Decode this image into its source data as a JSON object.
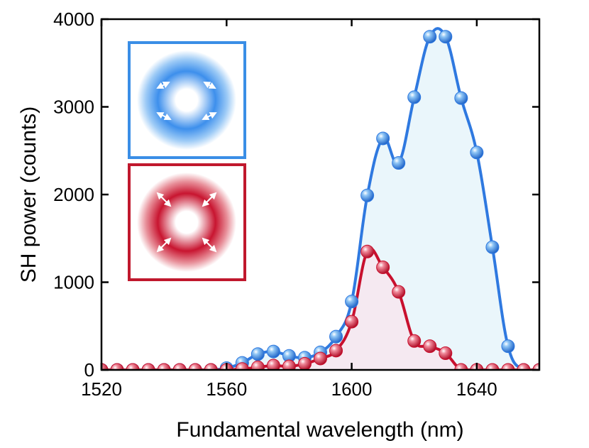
{
  "chart_data": {
    "type": "scatter",
    "title": "",
    "xlabel": "Fundamental wavelength (nm)",
    "ylabel": "SH power (counts)",
    "xlim": [
      1520,
      1660
    ],
    "ylim": [
      0,
      4000
    ],
    "xticks": [
      1520,
      1560,
      1600,
      1640
    ],
    "yticks": [
      0,
      1000,
      2000,
      3000,
      4000
    ],
    "legend": "inset icons top-left (blue and red ring patterns with arrows)",
    "series": [
      {
        "name": "blue",
        "color": "#2f79e0",
        "fill": "#eaf6fb",
        "x": [
          1520,
          1525,
          1530,
          1535,
          1540,
          1545,
          1550,
          1555,
          1560,
          1565,
          1570,
          1575,
          1580,
          1585,
          1590,
          1595,
          1600,
          1605,
          1610,
          1615,
          1620,
          1625,
          1630,
          1635,
          1640,
          1645,
          1650,
          1655,
          1660
        ],
        "y": [
          0,
          0,
          0,
          0,
          0,
          0,
          0,
          0,
          20,
          80,
          180,
          210,
          160,
          140,
          200,
          380,
          780,
          1990,
          2640,
          2360,
          3110,
          3800,
          3800,
          3100,
          2480,
          1400,
          270,
          0,
          0
        ]
      },
      {
        "name": "red",
        "color": "#c8102e",
        "fill": "#f5e9f1",
        "x": [
          1520,
          1525,
          1530,
          1535,
          1540,
          1545,
          1550,
          1555,
          1560,
          1565,
          1570,
          1575,
          1580,
          1585,
          1590,
          1595,
          1600,
          1605,
          1610,
          1615,
          1620,
          1625,
          1630,
          1635,
          1640,
          1645,
          1650,
          1655,
          1660
        ],
        "y": [
          0,
          0,
          0,
          0,
          0,
          0,
          0,
          0,
          0,
          10,
          30,
          50,
          40,
          70,
          130,
          220,
          550,
          1350,
          1170,
          890,
          330,
          270,
          190,
          0,
          0,
          0,
          0,
          0,
          0
        ]
      }
    ]
  }
}
